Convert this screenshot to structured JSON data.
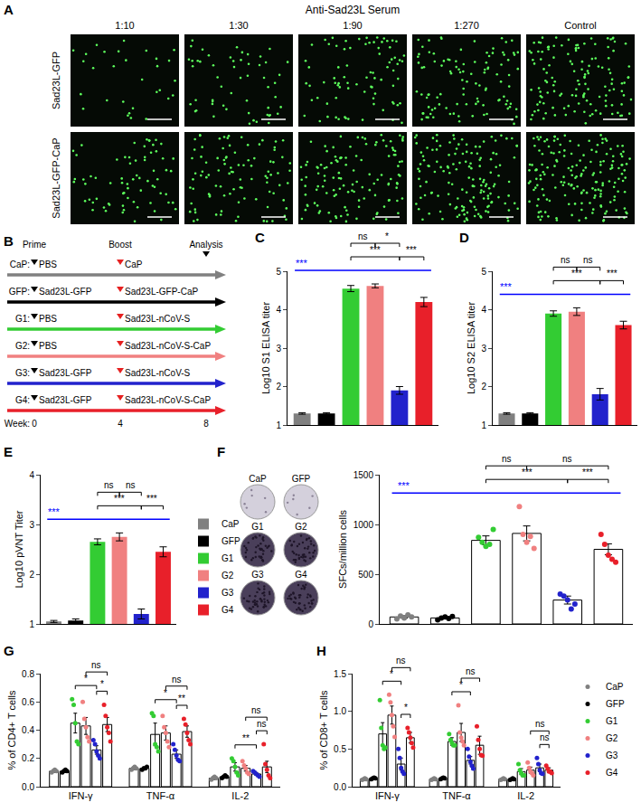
{
  "panel_A": {
    "label": "A",
    "title": "Anti-Sad23L Serum",
    "columns": [
      "1:10",
      "1:30",
      "1:90",
      "1:270",
      "Control"
    ],
    "rows": [
      "Sad23L-GFP",
      "Sad23L-GFP-CaP"
    ]
  },
  "panel_B": {
    "label": "B",
    "headers": {
      "prime": "Prime",
      "boost": "Boost",
      "analysis": "Analysis"
    },
    "week_label": "Week:",
    "weeks": [
      0,
      4,
      8
    ],
    "rows": [
      {
        "name": "CaP:",
        "prime": "PBS",
        "boost": "CaP",
        "color": "#808080"
      },
      {
        "name": "GFP:",
        "prime": "Sad23L-GFP",
        "boost": "Sad23L-GFP-CaP",
        "color": "#000000"
      },
      {
        "name": "G1:",
        "prime": "PBS",
        "boost": "Sad23L-nCoV-S",
        "color": "#33cc33"
      },
      {
        "name": "G2:",
        "prime": "PBS",
        "boost": "Sad23L-nCoV-S-CaP",
        "color": "#f08080"
      },
      {
        "name": "G3:",
        "prime": "Sad23L-GFP",
        "boost": "Sad23L-nCoV-S",
        "color": "#2222cc"
      },
      {
        "name": "G4:",
        "prime": "Sad23L-GFP",
        "boost": "Sad23L-nCoV-S-CaP",
        "color": "#e8202a"
      }
    ]
  },
  "chart_data": [
    {
      "panel": "C",
      "type": "bar",
      "categories": [
        "CaP",
        "GFP",
        "G1",
        "G2",
        "G3",
        "G4"
      ],
      "colors": [
        "#808080",
        "#000000",
        "#33cc33",
        "#f08080",
        "#2222cc",
        "#e8202a"
      ],
      "values": [
        1.3,
        1.3,
        4.55,
        4.62,
        1.9,
        4.2
      ],
      "errors": [
        0.02,
        0.02,
        0.08,
        0.05,
        0.1,
        0.12
      ],
      "ylabel": "Log10 S1 ELISA titer",
      "ylim": [
        1,
        5
      ],
      "yticks": [
        1,
        2,
        3,
        4,
        5
      ],
      "grid": false,
      "tick_labels": "y",
      "brackets": [
        {
          "from": "CaP",
          "to": "G4",
          "label": "***",
          "color": "#0000ff"
        },
        {
          "from": "G1",
          "to": "G3",
          "label": "***"
        },
        {
          "from": "G3",
          "to": "G4",
          "label": "***"
        },
        {
          "from": "G1",
          "to": "G2",
          "label": "ns"
        },
        {
          "from": "G2",
          "to": "G3",
          "label": "*"
        }
      ]
    },
    {
      "panel": "D",
      "type": "bar",
      "categories": [
        "CaP",
        "GFP",
        "G1",
        "G2",
        "G3",
        "G4"
      ],
      "colors": [
        "#808080",
        "#000000",
        "#33cc33",
        "#f08080",
        "#2222cc",
        "#e8202a"
      ],
      "values": [
        1.3,
        1.3,
        3.9,
        3.95,
        1.8,
        3.6
      ],
      "errors": [
        0.02,
        0.02,
        0.07,
        0.1,
        0.15,
        0.1
      ],
      "ylabel": "Log10 S2 ELISA titer",
      "ylim": [
        1,
        5
      ],
      "yticks": [
        1,
        2,
        3,
        4,
        5
      ],
      "grid": false,
      "tick_labels": "y",
      "brackets": [
        {
          "from": "CaP",
          "to": "G4",
          "label": "***",
          "color": "#0000ff"
        },
        {
          "from": "G1",
          "to": "G3",
          "label": "***"
        },
        {
          "from": "G3",
          "to": "G4",
          "label": "***"
        },
        {
          "from": "G1",
          "to": "G2",
          "label": "ns"
        },
        {
          "from": "G2",
          "to": "G3",
          "label": "ns"
        }
      ]
    },
    {
      "panel": "E",
      "type": "bar",
      "categories": [
        "CaP",
        "GFP",
        "G1",
        "G2",
        "G3",
        "G4"
      ],
      "colors": [
        "#808080",
        "#000000",
        "#33cc33",
        "#f08080",
        "#2222cc",
        "#e8202a"
      ],
      "values": [
        1.05,
        1.07,
        2.65,
        2.75,
        1.2,
        2.45
      ],
      "errors": [
        0.02,
        0.03,
        0.06,
        0.08,
        0.1,
        0.1
      ],
      "ylabel": "Log10 pVNT Titer",
      "ylim": [
        1,
        4
      ],
      "yticks": [
        1,
        2,
        3,
        4
      ],
      "grid": false,
      "tick_labels": "y",
      "legend": "right",
      "brackets": [
        {
          "from": "CaP",
          "to": "G4",
          "label": "***",
          "color": "#0000ff"
        },
        {
          "from": "G1",
          "to": "G3",
          "label": "***"
        },
        {
          "from": "G3",
          "to": "G4",
          "label": "***"
        },
        {
          "from": "G1",
          "to": "G2",
          "label": "ns"
        },
        {
          "from": "G2",
          "to": "G3",
          "label": "ns"
        }
      ]
    },
    {
      "panel": "F",
      "type": "bar",
      "categories": [
        "CaP",
        "GFP",
        "G1",
        "G2",
        "G3",
        "G4"
      ],
      "colors": [
        "#808080",
        "#000000",
        "#33cc33",
        "#f08080",
        "#2222cc",
        "#e8202a"
      ],
      "values": [
        70,
        60,
        840,
        910,
        240,
        750
      ],
      "errors": [
        12,
        10,
        45,
        75,
        40,
        55
      ],
      "points": [
        [
          50,
          80,
          60,
          90,
          70
        ],
        [
          40,
          60,
          70,
          55,
          75
        ],
        [
          870,
          820,
          780,
          800,
          950
        ],
        [
          1180,
          900,
          820,
          880,
          760
        ],
        [
          300,
          280,
          240,
          150,
          200
        ],
        [
          900,
          800,
          690,
          650,
          620
        ]
      ],
      "wells": [
        "CaP",
        "GFP",
        "G1",
        "G2",
        "G3",
        "G4"
      ],
      "ylabel": "SFCs/million cells",
      "ylim": [
        0,
        1500
      ],
      "yticks": [
        0,
        500,
        1000,
        1500
      ],
      "grid": false,
      "tick_labels": "y",
      "brackets": [
        {
          "from": "CaP",
          "to": "G4",
          "label": "***",
          "color": "#0000ff"
        },
        {
          "from": "G1",
          "to": "G3",
          "label": "***"
        },
        {
          "from": "G3",
          "to": "G4",
          "label": "***"
        },
        {
          "from": "G1",
          "to": "G2",
          "label": "ns"
        },
        {
          "from": "G2",
          "to": "G4",
          "label": "ns"
        }
      ]
    },
    {
      "panel": "G",
      "type": "bar",
      "categories": [
        "IFN-γ",
        "TNF-α",
        "IL-2"
      ],
      "series": [
        {
          "name": "CaP",
          "color": "#808080",
          "values": [
            0.11,
            0.13,
            0.06
          ],
          "errors": [
            0.01,
            0.01,
            0.01
          ],
          "points": [
            [
              0.1,
              0.11,
              0.12,
              0.11
            ],
            [
              0.12,
              0.13,
              0.14,
              0.13
            ],
            [
              0.05,
              0.06,
              0.07,
              0.06
            ]
          ]
        },
        {
          "name": "GFP",
          "color": "#000000",
          "values": [
            0.11,
            0.13,
            0.07
          ],
          "errors": [
            0.01,
            0.01,
            0.01
          ],
          "points": [
            [
              0.1,
              0.11,
              0.12,
              0.11
            ],
            [
              0.12,
              0.13,
              0.13,
              0.14
            ],
            [
              0.06,
              0.07,
              0.08,
              0.07
            ]
          ]
        },
        {
          "name": "G1",
          "color": "#33cc33",
          "values": [
            0.45,
            0.37,
            0.14
          ],
          "errors": [
            0.07,
            0.08,
            0.03
          ],
          "points": [
            [
              0.62,
              0.58,
              0.45,
              0.32,
              0.3
            ],
            [
              0.52,
              0.5,
              0.3,
              0.28,
              0.25
            ],
            [
              0.2,
              0.18,
              0.14,
              0.1,
              0.08
            ]
          ]
        },
        {
          "name": "G2",
          "color": "#f08080",
          "values": [
            0.43,
            0.38,
            0.13
          ],
          "errors": [
            0.06,
            0.05,
            0.02
          ],
          "points": [
            [
              0.6,
              0.48,
              0.42,
              0.35,
              0.32
            ],
            [
              0.5,
              0.42,
              0.38,
              0.32,
              0.28
            ],
            [
              0.18,
              0.15,
              0.13,
              0.1,
              0.09
            ]
          ]
        },
        {
          "name": "G3",
          "color": "#2222cc",
          "values": [
            0.26,
            0.23,
            0.09
          ],
          "errors": [
            0.03,
            0.03,
            0.01
          ],
          "points": [
            [
              0.33,
              0.3,
              0.25,
              0.22,
              0.2
            ],
            [
              0.3,
              0.26,
              0.22,
              0.19,
              0.18
            ],
            [
              0.11,
              0.1,
              0.09,
              0.08,
              0.07
            ]
          ]
        },
        {
          "name": "G4",
          "color": "#e8202a",
          "values": [
            0.44,
            0.39,
            0.14
          ],
          "errors": [
            0.05,
            0.04,
            0.04
          ],
          "points": [
            [
              0.58,
              0.5,
              0.42,
              0.38,
              0.32
            ],
            [
              0.48,
              0.44,
              0.38,
              0.33,
              0.3
            ],
            [
              0.3,
              0.16,
              0.12,
              0.08,
              0.06
            ]
          ]
        }
      ],
      "ylabel": "% of CD4+ T cells",
      "ylim": [
        0,
        0.8
      ],
      "yticks": [
        {
          "value": 0,
          "label": "0.0"
        },
        0.2,
        0.4,
        0.6,
        0.8
      ],
      "grid": false,
      "brackets": [
        {
          "category": "IFN-γ",
          "from": "G1",
          "to": "G3",
          "label": "*"
        },
        {
          "category": "IFN-γ",
          "from": "G3",
          "to": "G4",
          "label": "*"
        },
        {
          "category": "IFN-γ",
          "from": "G2",
          "to": "G4",
          "label": "ns"
        },
        {
          "category": "TNF-α",
          "from": "G1",
          "to": "G3",
          "label": "*"
        },
        {
          "category": "TNF-α",
          "from": "G3",
          "to": "G4",
          "label": "**"
        },
        {
          "category": "TNF-α",
          "from": "G2",
          "to": "G4",
          "label": "ns"
        },
        {
          "category": "IL-2",
          "from": "G1",
          "to": "G3",
          "label": "**"
        },
        {
          "category": "IL-2",
          "from": "G3",
          "to": "G4",
          "label": "ns"
        },
        {
          "category": "IL-2",
          "from": "G2",
          "to": "G4",
          "label": "ns"
        }
      ]
    },
    {
      "panel": "H",
      "type": "bar",
      "categories": [
        "IFN-γ",
        "TNF-α",
        "IL-2"
      ],
      "series": [
        {
          "name": "CaP",
          "color": "#808080",
          "values": [
            0.1,
            0.1,
            0.1
          ],
          "errors": [
            0.01,
            0.01,
            0.01
          ],
          "points": [
            [
              0.09,
              0.1,
              0.11,
              0.1
            ],
            [
              0.09,
              0.1,
              0.11,
              0.1
            ],
            [
              0.09,
              0.1,
              0.11,
              0.1
            ]
          ]
        },
        {
          "name": "GFP",
          "color": "#000000",
          "values": [
            0.11,
            0.11,
            0.1
          ],
          "errors": [
            0.01,
            0.01,
            0.01
          ],
          "points": [
            [
              0.1,
              0.11,
              0.12,
              0.11
            ],
            [
              0.1,
              0.11,
              0.12,
              0.11
            ],
            [
              0.09,
              0.1,
              0.11,
              0.1
            ]
          ]
        },
        {
          "name": "G1",
          "color": "#33cc33",
          "values": [
            0.7,
            0.6,
            0.2
          ],
          "errors": [
            0.15,
            0.05,
            0.04
          ],
          "points": [
            [
              1.15,
              0.78,
              0.55,
              0.5,
              0.52
            ],
            [
              0.7,
              0.62,
              0.58,
              0.55,
              0.55
            ],
            [
              0.3,
              0.22,
              0.18,
              0.15,
              0.15
            ]
          ]
        },
        {
          "name": "G2",
          "color": "#f08080",
          "values": [
            0.95,
            0.72,
            0.22
          ],
          "errors": [
            0.12,
            0.12,
            0.04
          ],
          "points": [
            [
              1.22,
              1.12,
              0.95,
              0.8,
              0.66
            ],
            [
              1.08,
              0.72,
              0.65,
              0.6,
              0.55
            ],
            [
              0.32,
              0.25,
              0.2,
              0.18,
              0.15
            ]
          ]
        },
        {
          "name": "G3",
          "color": "#2222cc",
          "values": [
            0.3,
            0.35,
            0.25
          ],
          "errors": [
            0.08,
            0.05,
            0.05
          ],
          "points": [
            [
              0.5,
              0.38,
              0.25,
              0.2,
              0.17
            ],
            [
              0.5,
              0.4,
              0.33,
              0.28,
              0.24
            ],
            [
              0.38,
              0.3,
              0.22,
              0.18,
              0.17
            ]
          ]
        },
        {
          "name": "G4",
          "color": "#e8202a",
          "values": [
            0.65,
            0.55,
            0.22
          ],
          "errors": [
            0.07,
            0.12,
            0.03
          ],
          "points": [
            [
              0.78,
              0.72,
              0.65,
              0.58,
              0.52
            ],
            [
              0.8,
              0.62,
              0.5,
              0.42,
              0.41
            ],
            [
              0.28,
              0.24,
              0.2,
              0.2,
              0.18
            ]
          ]
        }
      ],
      "ylabel": "% of CD8+ T cells",
      "ylim": [
        0,
        1.5
      ],
      "yticks": [
        {
          "value": 0,
          "label": "0.0"
        },
        0.5,
        {
          "value": 1,
          "label": "1.0"
        },
        1.5
      ],
      "grid": false,
      "legend": "right",
      "brackets": [
        {
          "category": "IFN-γ",
          "from": "G1",
          "to": "G3",
          "label": "*"
        },
        {
          "category": "IFN-γ",
          "from": "G3",
          "to": "G4",
          "label": "*"
        },
        {
          "category": "IFN-γ",
          "from": "G2",
          "to": "G4",
          "label": "ns"
        },
        {
          "category": "TNF-α",
          "from": "G1",
          "to": "G3",
          "label": "*"
        },
        {
          "category": "TNF-α",
          "from": "G2",
          "to": "G4",
          "label": "ns"
        },
        {
          "category": "IL-2",
          "from": "G3",
          "to": "G4",
          "label": "ns"
        },
        {
          "category": "IL-2",
          "from": "G2",
          "to": "G4",
          "label": "ns"
        }
      ]
    }
  ]
}
